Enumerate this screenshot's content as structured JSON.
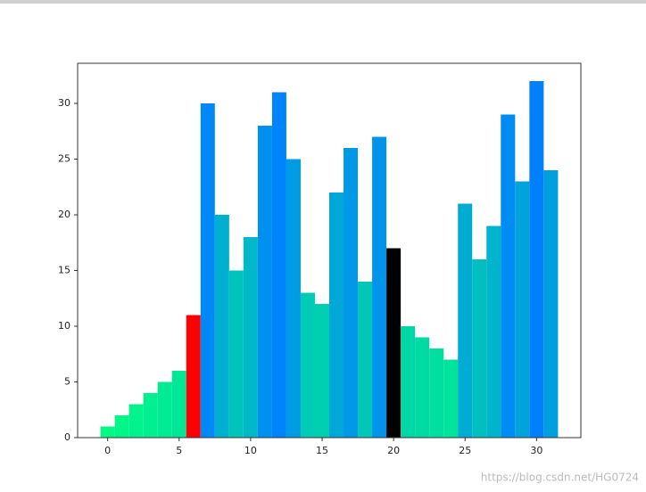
{
  "chart_data": {
    "type": "bar",
    "x": [
      0,
      1,
      2,
      3,
      4,
      5,
      6,
      7,
      8,
      9,
      10,
      11,
      12,
      13,
      14,
      15,
      16,
      17,
      18,
      19,
      20,
      21,
      22,
      23,
      24,
      25,
      26,
      27,
      28,
      29,
      30,
      31
    ],
    "values": [
      1,
      2,
      3,
      4,
      5,
      6,
      11,
      30,
      20,
      15,
      18,
      28,
      31,
      25,
      13,
      12,
      22,
      26,
      14,
      27,
      17,
      10,
      9,
      8,
      7,
      21,
      16,
      19,
      29,
      23,
      32,
      24
    ],
    "colors": [
      "#00fb84",
      "#00f788",
      "#00f38c",
      "#00ef90",
      "#00eb94",
      "#00e798",
      "#ff0000",
      "#0088f7",
      "#00b0cf",
      "#00c3bc",
      "#00b8c7",
      "#0090ef",
      "#0084fb",
      "#009ce3",
      "#00cbb4",
      "#00cfb0",
      "#00a8d7",
      "#0098e7",
      "#00c7b8",
      "#0094eb",
      "#000000",
      "#00d7a8",
      "#00dba4",
      "#00dfa0",
      "#00e39c",
      "#00acd3",
      "#00bfc0",
      "#00b4cb",
      "#008cf3",
      "#00a4db",
      "#0080ff",
      "#00a0df"
    ],
    "bar_width": 1,
    "xlim": [
      -2.1,
      33.1
    ],
    "xticks": [
      0,
      5,
      10,
      15,
      20,
      25,
      30
    ],
    "ylim": [
      0,
      33.6
    ],
    "yticks": [
      0,
      5,
      10,
      15,
      20,
      25,
      30
    ],
    "grid": false,
    "watermark": "https://blog.csdn.net/HG0724"
  }
}
